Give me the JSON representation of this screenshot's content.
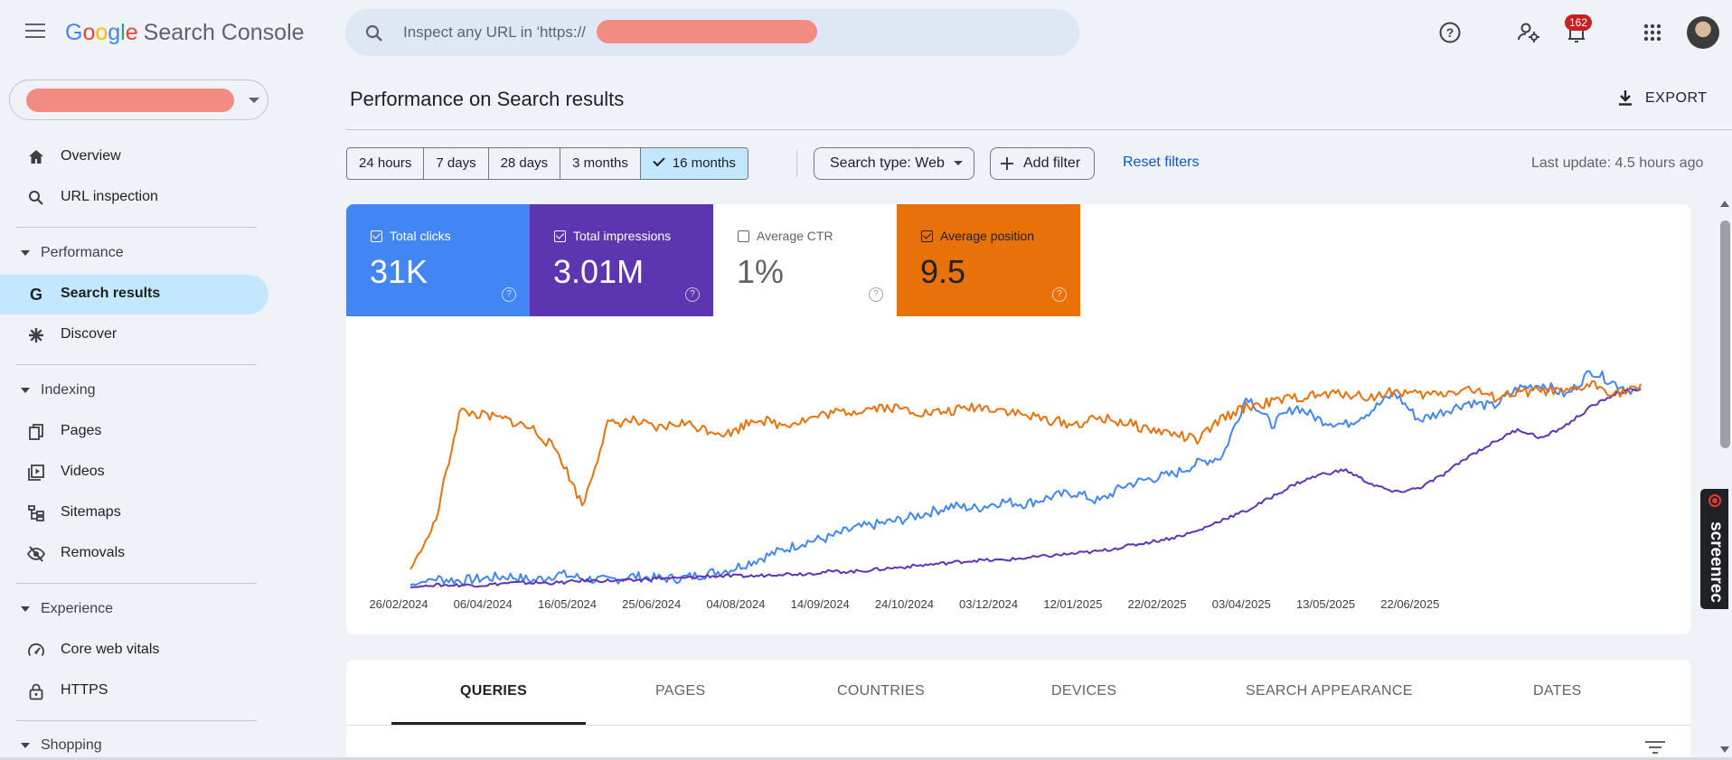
{
  "app": {
    "logo_google": [
      "G",
      "o",
      "o",
      "g",
      "l",
      "e"
    ],
    "logo_product": "Search Console"
  },
  "search": {
    "placeholder_prefix": "Inspect any URL in 'https://",
    "placeholder_suffix": "'"
  },
  "topbar": {
    "notification_count": "162"
  },
  "sidebar": {
    "items": [
      {
        "label": "Overview",
        "icon": "home-icon"
      },
      {
        "label": "URL inspection",
        "icon": "search-icon"
      },
      {
        "section": "Performance"
      },
      {
        "label": "Search results",
        "icon": "google-g-icon",
        "active": true
      },
      {
        "label": "Discover",
        "icon": "asterisk-icon"
      },
      {
        "section": "Indexing"
      },
      {
        "label": "Pages",
        "icon": "pages-icon"
      },
      {
        "label": "Videos",
        "icon": "video-icon"
      },
      {
        "label": "Sitemaps",
        "icon": "sitemap-icon"
      },
      {
        "label": "Removals",
        "icon": "eye-off-icon"
      },
      {
        "section": "Experience"
      },
      {
        "label": "Core web vitals",
        "icon": "gauge-icon"
      },
      {
        "label": "HTTPS",
        "icon": "lock-icon"
      },
      {
        "section": "Shopping"
      }
    ]
  },
  "main": {
    "title": "Performance on Search results",
    "export_label": "EXPORT",
    "date_ranges": [
      "24 hours",
      "7 days",
      "28 days",
      "3 months",
      "16 months"
    ],
    "active_range": "16 months",
    "search_type": "Search type: Web",
    "add_filter": "Add filter",
    "reset_filters": "Reset filters",
    "last_update": "Last update: 4.5 hours ago"
  },
  "metrics": [
    {
      "label": "Total clicks",
      "value": "31K",
      "checked": true,
      "color": "#4285f4"
    },
    {
      "label": "Total impressions",
      "value": "3.01M",
      "checked": true,
      "color": "#5e35b1"
    },
    {
      "label": "Average CTR",
      "value": "1%",
      "checked": false,
      "color": "#ffffff"
    },
    {
      "label": "Average position",
      "value": "9.5",
      "checked": true,
      "color": "#e8710a"
    }
  ],
  "chart_data": {
    "type": "line",
    "x_tick_labels": [
      "26/02/2024",
      "06/04/2024",
      "16/05/2024",
      "25/06/2024",
      "04/08/2024",
      "14/09/2024",
      "24/10/2024",
      "03/12/2024",
      "12/01/2025",
      "22/02/2025",
      "03/04/2025",
      "13/05/2025",
      "22/06/2025"
    ],
    "series": [
      {
        "name": "Total clicks",
        "color": "#4285f4",
        "values": [
          0.01,
          0.04,
          0.03,
          0.04,
          0.05,
          0.03,
          0.06,
          0.04,
          0.03,
          0.05,
          0.04,
          0.04,
          0.06,
          0.08,
          0.12,
          0.16,
          0.2,
          0.22,
          0.26,
          0.28,
          0.3,
          0.33,
          0.36,
          0.35,
          0.38,
          0.37,
          0.4,
          0.42,
          0.38,
          0.45,
          0.48,
          0.5,
          0.55,
          0.58,
          0.85,
          0.72,
          0.8,
          0.74,
          0.72,
          0.78,
          0.86,
          0.74,
          0.78,
          0.82,
          0.8,
          0.88,
          0.9,
          0.85,
          0.96,
          0.9,
          0.86
        ]
      },
      {
        "name": "Total impressions",
        "color": "#5e35b1",
        "values": [
          0.0,
          0.01,
          0.01,
          0.01,
          0.02,
          0.02,
          0.02,
          0.03,
          0.03,
          0.03,
          0.04,
          0.04,
          0.05,
          0.05,
          0.05,
          0.06,
          0.06,
          0.07,
          0.07,
          0.08,
          0.09,
          0.1,
          0.11,
          0.12,
          0.12,
          0.13,
          0.14,
          0.15,
          0.16,
          0.18,
          0.2,
          0.22,
          0.25,
          0.3,
          0.34,
          0.4,
          0.46,
          0.5,
          0.52,
          0.46,
          0.42,
          0.44,
          0.5,
          0.58,
          0.64,
          0.7,
          0.66,
          0.72,
          0.8,
          0.86,
          0.88
        ]
      },
      {
        "name": "Average position",
        "color": "#e8710a",
        "values": [
          0.08,
          0.28,
          0.78,
          0.76,
          0.74,
          0.7,
          0.6,
          0.36,
          0.72,
          0.74,
          0.7,
          0.73,
          0.7,
          0.68,
          0.75,
          0.72,
          0.74,
          0.77,
          0.78,
          0.8,
          0.79,
          0.77,
          0.78,
          0.8,
          0.79,
          0.76,
          0.74,
          0.72,
          0.75,
          0.73,
          0.7,
          0.68,
          0.65,
          0.75,
          0.8,
          0.82,
          0.84,
          0.85,
          0.86,
          0.84,
          0.87,
          0.85,
          0.86,
          0.88,
          0.84,
          0.86,
          0.87,
          0.86,
          0.9,
          0.86,
          0.88
        ]
      }
    ],
    "grid": false,
    "legend": "none"
  },
  "tabs": [
    "QUERIES",
    "PAGES",
    "COUNTRIES",
    "DEVICES",
    "SEARCH APPEARANCE",
    "DATES"
  ],
  "overlay": {
    "screenrec_label": "screenrec"
  }
}
